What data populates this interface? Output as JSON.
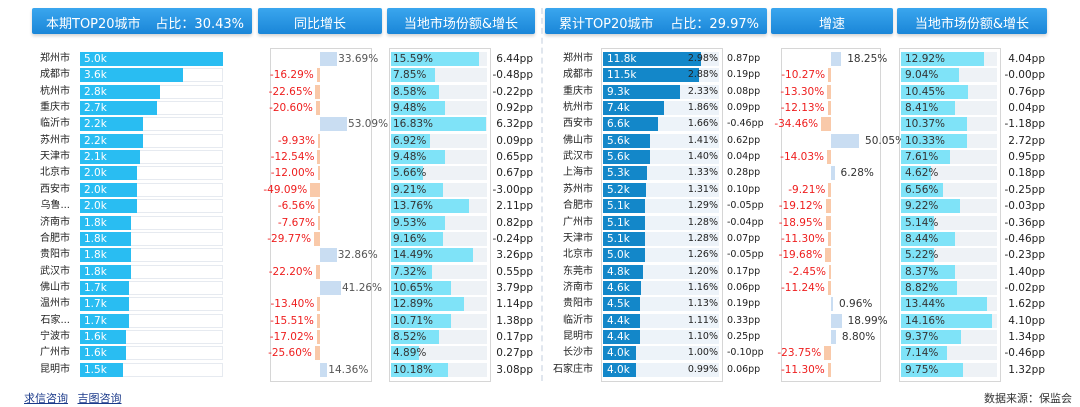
{
  "left": {
    "headers": {
      "title": "本期TOP20城市",
      "share": "占比：30.43%",
      "yoy": "同比增长",
      "market": "当地市场份额&增长"
    },
    "rows": [
      {
        "city": "郑州市",
        "value": "5.0k",
        "yoy": "33.69%",
        "mshare": "15.59%",
        "growth": "6.44pp"
      },
      {
        "city": "成都市",
        "value": "3.6k",
        "yoy": "-16.29%",
        "mshare": "7.85%",
        "growth": "-0.48pp"
      },
      {
        "city": "杭州市",
        "value": "2.8k",
        "yoy": "-22.65%",
        "mshare": "8.58%",
        "growth": "-0.22pp"
      },
      {
        "city": "重庆市",
        "value": "2.7k",
        "yoy": "-20.60%",
        "mshare": "9.48%",
        "growth": "0.92pp"
      },
      {
        "city": "临沂市",
        "value": "2.2k",
        "yoy": "53.09%",
        "mshare": "16.83%",
        "growth": "6.32pp"
      },
      {
        "city": "苏州市",
        "value": "2.2k",
        "yoy": "-9.93%",
        "mshare": "6.92%",
        "growth": "0.09pp"
      },
      {
        "city": "天津市",
        "value": "2.1k",
        "yoy": "-12.54%",
        "mshare": "9.48%",
        "growth": "0.65pp"
      },
      {
        "city": "北京市",
        "value": "2.0k",
        "yoy": "-12.00%",
        "mshare": "5.66%",
        "growth": "0.67pp"
      },
      {
        "city": "西安市",
        "value": "2.0k",
        "yoy": "-49.09%",
        "mshare": "9.21%",
        "growth": "-3.00pp"
      },
      {
        "city": "乌鲁...",
        "value": "2.0k",
        "yoy": "-6.56%",
        "mshare": "13.76%",
        "growth": "2.11pp"
      },
      {
        "city": "济南市",
        "value": "1.8k",
        "yoy": "-7.67%",
        "mshare": "9.53%",
        "growth": "0.82pp"
      },
      {
        "city": "合肥市",
        "value": "1.8k",
        "yoy": "-29.77%",
        "mshare": "9.16%",
        "growth": "-0.24pp"
      },
      {
        "city": "贵阳市",
        "value": "1.8k",
        "yoy": "32.86%",
        "mshare": "14.49%",
        "growth": "3.26pp"
      },
      {
        "city": "武汉市",
        "value": "1.8k",
        "yoy": "-22.20%",
        "mshare": "7.32%",
        "growth": "0.55pp"
      },
      {
        "city": "佛山市",
        "value": "1.7k",
        "yoy": "41.26%",
        "mshare": "10.65%",
        "growth": "3.79pp"
      },
      {
        "city": "温州市",
        "value": "1.7k",
        "yoy": "-13.40%",
        "mshare": "12.89%",
        "growth": "1.14pp"
      },
      {
        "city": "石家...",
        "value": "1.7k",
        "yoy": "-15.51%",
        "mshare": "10.71%",
        "growth": "1.38pp"
      },
      {
        "city": "宁波市",
        "value": "1.6k",
        "yoy": "-17.02%",
        "mshare": "8.52%",
        "growth": "0.17pp"
      },
      {
        "city": "广州市",
        "value": "1.6k",
        "yoy": "-25.60%",
        "mshare": "4.89%",
        "growth": "0.27pp"
      },
      {
        "city": "昆明市",
        "value": "1.5k",
        "yoy": "14.36%",
        "mshare": "10.18%",
        "growth": "3.08pp"
      }
    ]
  },
  "right": {
    "headers": {
      "title": "累计TOP20城市",
      "share": "占比：29.97%",
      "speed": "增速",
      "market": "当地市场份额&增长"
    },
    "rows": [
      {
        "city": "郑州市",
        "value": "11.8k",
        "pct": "2.98%",
        "pp": "0.87pp",
        "speed": "18.25%",
        "mshare": "12.92%",
        "growth": "4.04pp"
      },
      {
        "city": "成都市",
        "value": "11.5k",
        "pct": "2.88%",
        "pp": "0.19pp",
        "speed": "-10.27%",
        "mshare": "9.04%",
        "growth": "-0.00pp"
      },
      {
        "city": "重庆市",
        "value": "9.3k",
        "pct": "2.33%",
        "pp": "0.08pp",
        "speed": "-13.30%",
        "mshare": "10.45%",
        "growth": "0.76pp"
      },
      {
        "city": "杭州市",
        "value": "7.4k",
        "pct": "1.86%",
        "pp": "0.09pp",
        "speed": "-12.13%",
        "mshare": "8.41%",
        "growth": "0.04pp"
      },
      {
        "city": "西安市",
        "value": "6.6k",
        "pct": "1.66%",
        "pp": "-0.46pp",
        "speed": "-34.46%",
        "mshare": "10.37%",
        "growth": "-1.18pp"
      },
      {
        "city": "佛山市",
        "value": "5.6k",
        "pct": "1.41%",
        "pp": "0.62pp",
        "speed": "50.05%",
        "mshare": "10.33%",
        "growth": "2.72pp"
      },
      {
        "city": "武汉市",
        "value": "5.6k",
        "pct": "1.40%",
        "pp": "0.04pp",
        "speed": "-14.03%",
        "mshare": "7.61%",
        "growth": "0.95pp"
      },
      {
        "city": "上海市",
        "value": "5.3k",
        "pct": "1.33%",
        "pp": "0.28pp",
        "speed": "6.28%",
        "mshare": "4.62%",
        "growth": "0.18pp"
      },
      {
        "city": "苏州市",
        "value": "5.2k",
        "pct": "1.31%",
        "pp": "0.10pp",
        "speed": "-9.21%",
        "mshare": "6.56%",
        "growth": "-0.25pp"
      },
      {
        "city": "合肥市",
        "value": "5.1k",
        "pct": "1.29%",
        "pp": "-0.05pp",
        "speed": "-19.12%",
        "mshare": "9.22%",
        "growth": "-0.03pp"
      },
      {
        "city": "广州市",
        "value": "5.1k",
        "pct": "1.28%",
        "pp": "-0.04pp",
        "speed": "-18.95%",
        "mshare": "5.14%",
        "growth": "-0.36pp"
      },
      {
        "city": "天津市",
        "value": "5.1k",
        "pct": "1.28%",
        "pp": "0.07pp",
        "speed": "-11.30%",
        "mshare": "8.44%",
        "growth": "-0.46pp"
      },
      {
        "city": "北京市",
        "value": "5.0k",
        "pct": "1.26%",
        "pp": "-0.05pp",
        "speed": "-19.68%",
        "mshare": "5.22%",
        "growth": "-0.23pp"
      },
      {
        "city": "东莞市",
        "value": "4.8k",
        "pct": "1.20%",
        "pp": "0.17pp",
        "speed": "-2.45%",
        "mshare": "8.37%",
        "growth": "1.40pp"
      },
      {
        "city": "济南市",
        "value": "4.6k",
        "pct": "1.16%",
        "pp": "0.06pp",
        "speed": "-11.24%",
        "mshare": "8.82%",
        "growth": "-0.02pp"
      },
      {
        "city": "贵阳市",
        "value": "4.5k",
        "pct": "1.13%",
        "pp": "0.19pp",
        "speed": "0.96%",
        "mshare": "13.44%",
        "growth": "1.62pp"
      },
      {
        "city": "临沂市",
        "value": "4.4k",
        "pct": "1.11%",
        "pp": "0.33pp",
        "speed": "18.99%",
        "mshare": "14.16%",
        "growth": "4.10pp"
      },
      {
        "city": "昆明市",
        "value": "4.4k",
        "pct": "1.10%",
        "pp": "0.25pp",
        "speed": "8.80%",
        "mshare": "9.37%",
        "growth": "1.34pp"
      },
      {
        "city": "长沙市",
        "value": "4.0k",
        "pct": "1.00%",
        "pp": "-0.10pp",
        "speed": "-23.75%",
        "mshare": "7.14%",
        "growth": "-0.46pp"
      },
      {
        "city": "石家庄市",
        "value": "4.0k",
        "pct": "0.99%",
        "pp": "0.06pp",
        "speed": "-11.30%",
        "mshare": "9.75%",
        "growth": "1.32pp"
      }
    ]
  },
  "footer": {
    "link1": "求信咨询",
    "link2": "吉图咨询",
    "source": "数据来源：保监会"
  },
  "colors": {
    "header": "#1a86d8",
    "bar_left": "#29bdf2",
    "bar_right": "#1387c9",
    "market_bar": "#7fe3f8",
    "positive_bar": "#c9ddf2",
    "negative_bar": "#f9c9a9",
    "negative_text": "#ee1e1e"
  }
}
